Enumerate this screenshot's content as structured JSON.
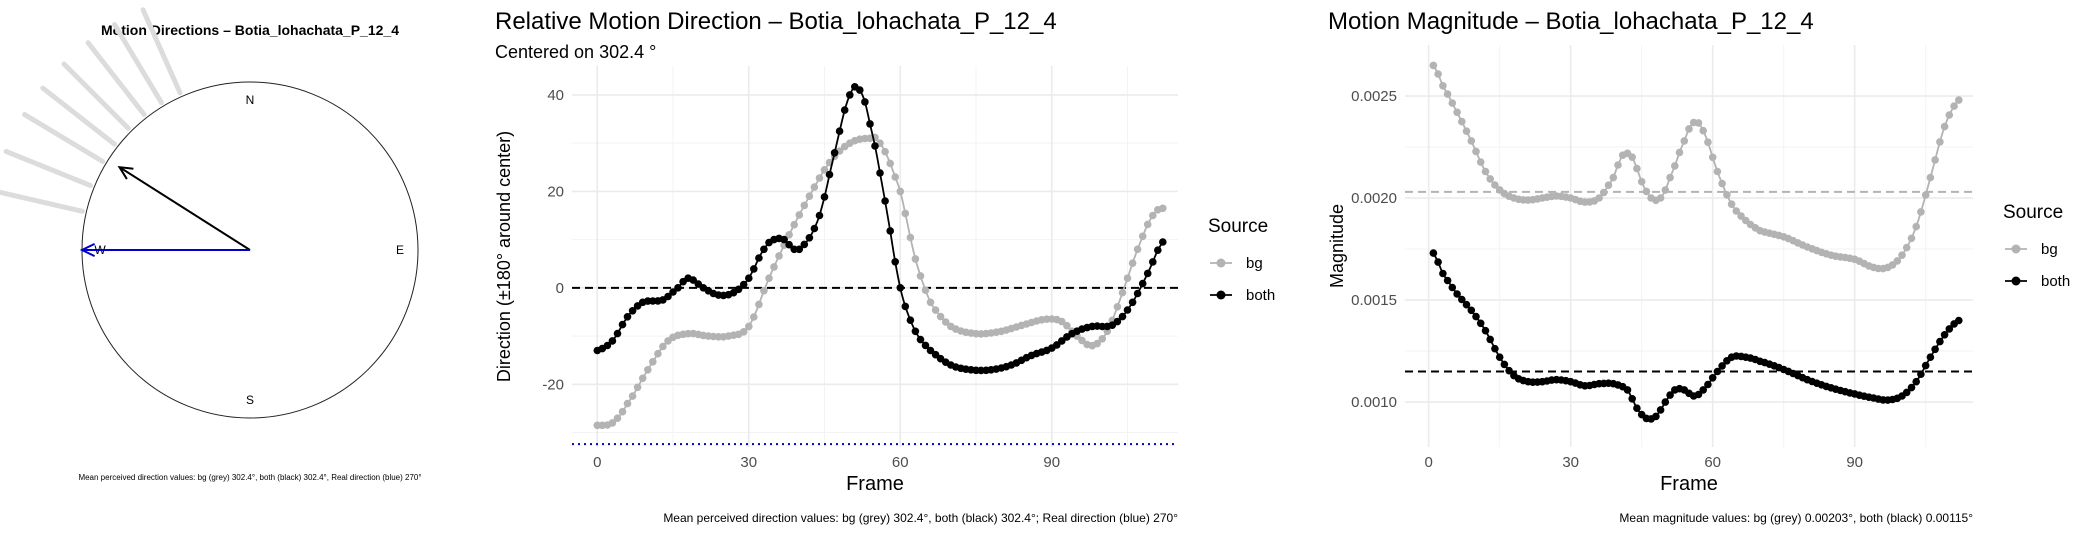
{
  "colors": {
    "bg_series": "#b3b3b3",
    "both_series": "#000000",
    "real_direction": "#0000cc",
    "grid": "#ebebeb"
  },
  "chart_data": [
    {
      "type": "compass",
      "title": "Motion Directions – Botia_lohachata_P_12_4",
      "compass_labels": {
        "n": "N",
        "e": "E",
        "s": "S",
        "w": "W"
      },
      "arrows": [
        {
          "name": "both",
          "angle_deg": 302.4,
          "length": 0.92,
          "color": "#000000"
        },
        {
          "name": "real",
          "angle_deg": 270,
          "length": 1.0,
          "color": "#0000cc"
        }
      ],
      "background_rays_deg": [
        283,
        292,
        301,
        308,
        315,
        322,
        329,
        336
      ],
      "caption": "Mean perceived direction values: bg (grey) 302.4°, both (black) 302.4°, Real direction (blue) 270°"
    },
    {
      "type": "line",
      "title": "Relative Motion Direction – Botia_lohachata_P_12_4",
      "subtitle": "Centered on  302.4 °",
      "xlabel": "Frame",
      "ylabel": "Direction (±180° around center)",
      "xlim": [
        -5,
        115
      ],
      "ylim": [
        -33,
        46
      ],
      "xticks": [
        0,
        30,
        60,
        90
      ],
      "yticks": [
        -20,
        0,
        20,
        40
      ],
      "grid": true,
      "legend": {
        "title": "Source",
        "position": "right",
        "entries": [
          "bg",
          "both"
        ]
      },
      "hlines": [
        {
          "y": 0,
          "style": "dashed",
          "color": "#000000"
        },
        {
          "y": -32.4,
          "style": "dotted",
          "color": "#0000cc"
        }
      ],
      "series": [
        {
          "name": "bg",
          "color": "#b3b3b3",
          "points": [
            [
              0,
              -28.5
            ],
            [
              3,
              -28
            ],
            [
              6,
              -24
            ],
            [
              10,
              -17
            ],
            [
              14,
              -11
            ],
            [
              18,
              -9.5
            ],
            [
              22,
              -10
            ],
            [
              26,
              -10
            ],
            [
              30,
              -8
            ],
            [
              34,
              2
            ],
            [
              38,
              11
            ],
            [
              42,
              19
            ],
            [
              46,
              26
            ],
            [
              50,
              30
            ],
            [
              54,
              31
            ],
            [
              56,
              30
            ],
            [
              60,
              20
            ],
            [
              63,
              6
            ],
            [
              66,
              -3
            ],
            [
              70,
              -8
            ],
            [
              75,
              -9.5
            ],
            [
              80,
              -9
            ],
            [
              85,
              -7.5
            ],
            [
              89,
              -6.5
            ],
            [
              92,
              -7
            ],
            [
              95,
              -10
            ],
            [
              98,
              -12
            ],
            [
              101,
              -9
            ],
            [
              104,
              -1
            ],
            [
              107,
              8
            ],
            [
              110,
              15
            ],
            [
              112,
              16.5
            ]
          ]
        },
        {
          "name": "both",
          "color": "#000000",
          "points": [
            [
              0,
              -13
            ],
            [
              3,
              -11
            ],
            [
              6,
              -6
            ],
            [
              9,
              -3
            ],
            [
              13,
              -2.5
            ],
            [
              16,
              0
            ],
            [
              18,
              2
            ],
            [
              21,
              0
            ],
            [
              24,
              -1.5
            ],
            [
              27,
              -1
            ],
            [
              30,
              2
            ],
            [
              33,
              8
            ],
            [
              35,
              10
            ],
            [
              37,
              10
            ],
            [
              39,
              8
            ],
            [
              41,
              9
            ],
            [
              44,
              15
            ],
            [
              47,
              28
            ],
            [
              50,
              40
            ],
            [
              52,
              41
            ],
            [
              54,
              34
            ],
            [
              57,
              18
            ],
            [
              60,
              0
            ],
            [
              63,
              -9
            ],
            [
              66,
              -13
            ],
            [
              70,
              -16
            ],
            [
              74,
              -17
            ],
            [
              78,
              -17
            ],
            [
              82,
              -16
            ],
            [
              86,
              -14
            ],
            [
              90,
              -12.5
            ],
            [
              94,
              -9.5
            ],
            [
              98,
              -8
            ],
            [
              101,
              -8
            ],
            [
              103,
              -7
            ],
            [
              106,
              -3
            ],
            [
              109,
              3
            ],
            [
              112,
              9.5
            ]
          ]
        }
      ],
      "caption": "Mean perceived direction values: bg (grey) 302.4°, both (black) 302.4°; Real direction (blue) 270°"
    },
    {
      "type": "line",
      "title": "Motion Magnitude – Botia_lohachata_P_12_4",
      "xlabel": "Frame",
      "ylabel": "Magnitude",
      "xlim": [
        -5,
        115
      ],
      "ylim": [
        0.00078,
        0.00275
      ],
      "xticks": [
        0,
        30,
        60,
        90
      ],
      "yticks": [
        0.001,
        0.0015,
        0.002,
        0.0025
      ],
      "ytick_labels": [
        "0.0010",
        "0.0015",
        "0.0020",
        "0.0025"
      ],
      "grid": true,
      "legend": {
        "title": "Source",
        "position": "right",
        "entries": [
          "bg",
          "both"
        ]
      },
      "hlines": [
        {
          "y": 0.00203,
          "style": "dashed",
          "color": "#b3b3b3"
        },
        {
          "y": 0.00115,
          "style": "dashed",
          "color": "#000000"
        }
      ],
      "series": [
        {
          "name": "bg",
          "color": "#b3b3b3",
          "points": [
            [
              1,
              0.00265
            ],
            [
              3,
              0.00255
            ],
            [
              6,
              0.00242
            ],
            [
              9,
              0.00228
            ],
            [
              12,
              0.00213
            ],
            [
              15,
              0.00204
            ],
            [
              18,
              0.002
            ],
            [
              21,
              0.00199
            ],
            [
              24,
              0.002
            ],
            [
              27,
              0.00201
            ],
            [
              30,
              0.002
            ],
            [
              33,
              0.00198
            ],
            [
              36,
              0.002
            ],
            [
              39,
              0.0021
            ],
            [
              41,
              0.00221
            ],
            [
              43,
              0.0022
            ],
            [
              45,
              0.00208
            ],
            [
              47,
              0.002
            ],
            [
              49,
              0.002
            ],
            [
              51,
              0.0021
            ],
            [
              54,
              0.00228
            ],
            [
              56,
              0.00237
            ],
            [
              58,
              0.00233
            ],
            [
              61,
              0.00213
            ],
            [
              64,
              0.00197
            ],
            [
              67,
              0.00189
            ],
            [
              70,
              0.00184
            ],
            [
              75,
              0.00181
            ],
            [
              80,
              0.00176
            ],
            [
              85,
              0.00172
            ],
            [
              90,
              0.0017
            ],
            [
              94,
              0.00166
            ],
            [
              97,
              0.00166
            ],
            [
              100,
              0.00172
            ],
            [
              103,
              0.00186
            ],
            [
              106,
              0.0021
            ],
            [
              109,
              0.00235
            ],
            [
              112,
              0.00248
            ]
          ]
        },
        {
          "name": "both",
          "color": "#000000",
          "points": [
            [
              1,
              0.00173
            ],
            [
              3,
              0.00163
            ],
            [
              6,
              0.00153
            ],
            [
              9,
              0.00145
            ],
            [
              12,
              0.00135
            ],
            [
              15,
              0.00122
            ],
            [
              18,
              0.00113
            ],
            [
              21,
              0.0011
            ],
            [
              24,
              0.0011
            ],
            [
              27,
              0.00111
            ],
            [
              30,
              0.0011
            ],
            [
              33,
              0.00108
            ],
            [
              36,
              0.00109
            ],
            [
              39,
              0.00109
            ],
            [
              42,
              0.00106
            ],
            [
              44,
              0.00097
            ],
            [
              46,
              0.00092
            ],
            [
              48,
              0.00093
            ],
            [
              50,
              0.001
            ],
            [
              52,
              0.00106
            ],
            [
              54,
              0.00106
            ],
            [
              56,
              0.00103
            ],
            [
              58,
              0.00106
            ],
            [
              61,
              0.00115
            ],
            [
              64,
              0.00122
            ],
            [
              67,
              0.00122
            ],
            [
              70,
              0.0012
            ],
            [
              75,
              0.00116
            ],
            [
              80,
              0.00111
            ],
            [
              85,
              0.00107
            ],
            [
              90,
              0.00104
            ],
            [
              94,
              0.00102
            ],
            [
              97,
              0.00101
            ],
            [
              100,
              0.00103
            ],
            [
              103,
              0.0011
            ],
            [
              106,
              0.00122
            ],
            [
              109,
              0.00133
            ],
            [
              112,
              0.0014
            ]
          ]
        }
      ],
      "caption": "Mean magnitude values: bg (grey) 0.00203°, both (black) 0.00115°"
    }
  ]
}
